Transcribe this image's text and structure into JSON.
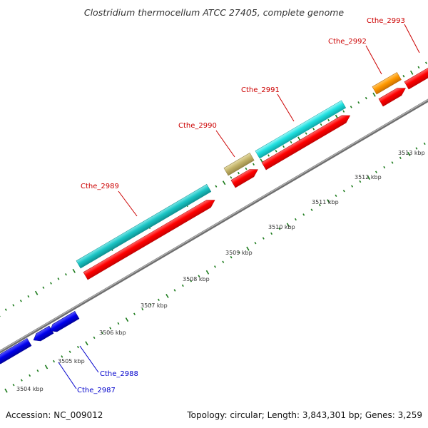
{
  "title": "Clostridium thermocellum ATCC 27405, complete genome",
  "footer": {
    "accession": "Accession: NC_009012",
    "summary": "Topology: circular; Length: 3,843,301 bp; Genes: 3,259"
  },
  "colors": {
    "background": "#ffffff",
    "backbone": "#8a8a8a",
    "tick": "#1a7a1a",
    "cds": "#ff0000",
    "feature_cyan": "#22e6e6",
    "feature_teal": "#1fcfcf",
    "feature_olive": "#c8b870",
    "feature_orange": "#ff9900",
    "gene_blue": "#0000ee",
    "label_red": "#cc0000",
    "label_blue": "#0000cc"
  },
  "scale_labels": [
    "3504 kbp",
    "3505 kbp",
    "3506 kbp",
    "3507 kbp",
    "3508 kbp",
    "3509 kbp",
    "3510 kbp",
    "3511 kbp",
    "3512 kbp",
    "3513 kbp"
  ],
  "genes": [
    {
      "name": "Cthe_2987",
      "color": "label_blue"
    },
    {
      "name": "Cthe_2988",
      "color": "label_blue"
    },
    {
      "name": "Cthe_2989",
      "color": "label_red"
    },
    {
      "name": "Cthe_2990",
      "color": "label_red"
    },
    {
      "name": "Cthe_2991",
      "color": "label_red"
    },
    {
      "name": "Cthe_2992",
      "color": "label_red"
    },
    {
      "name": "Cthe_2993",
      "color": "label_red"
    }
  ]
}
